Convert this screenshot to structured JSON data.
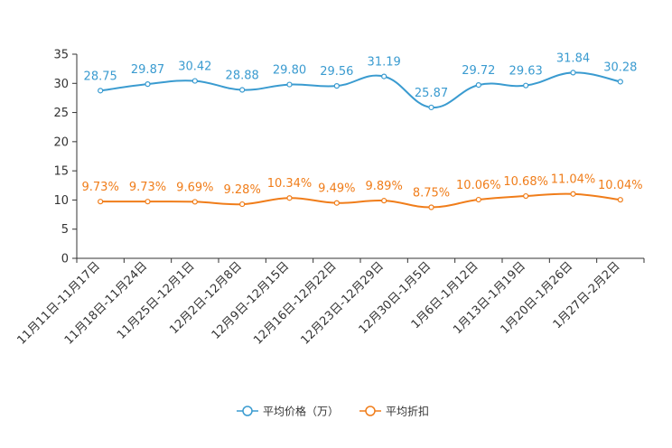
{
  "chart_data": {
    "type": "line",
    "title": "",
    "xlabel": "",
    "ylabel": "",
    "ylim": [
      0,
      35
    ],
    "yticks": [
      0,
      5,
      10,
      15,
      20,
      25,
      30,
      35
    ],
    "grid": false,
    "legend_position": "bottom-center",
    "categories": [
      "11月11日-11月17日",
      "11月18日-11月24日",
      "11月25日-12月1日",
      "12月2日-12月8日",
      "12月9日-12月15日",
      "12月16日-12月22日",
      "12月23日-12月29日",
      "12月30日-1月5日",
      "1月6日-1月12日",
      "1月13日-1月19日",
      "1月20日-1月26日",
      "1月27日-2月2日"
    ],
    "series": [
      {
        "name": "平均价格（万）",
        "color": "#3a9bd0",
        "values": [
          28.75,
          29.87,
          30.42,
          28.88,
          29.8,
          29.56,
          31.19,
          25.87,
          29.72,
          29.63,
          31.84,
          30.28
        ],
        "labels": [
          "28.75",
          "29.87",
          "30.42",
          "28.88",
          "29.80",
          "29.56",
          "31.19",
          "25.87",
          "29.72",
          "29.63",
          "31.84",
          "30.28"
        ]
      },
      {
        "name": "平均折扣",
        "color": "#f07d1a",
        "values": [
          9.73,
          9.73,
          9.69,
          9.28,
          10.34,
          9.49,
          9.89,
          8.75,
          10.06,
          10.68,
          11.04,
          10.04
        ],
        "labels": [
          "9.73%",
          "9.73%",
          "9.69%",
          "9.28%",
          "10.34%",
          "9.49%",
          "9.89%",
          "8.75%",
          "10.06%",
          "10.68%",
          "11.04%",
          "10.04%"
        ]
      }
    ]
  }
}
